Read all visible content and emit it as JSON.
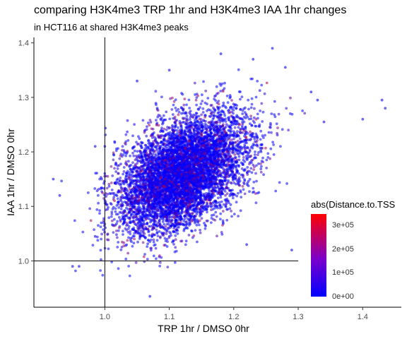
{
  "title": "comparing H3K4me3 TRP 1hr and H3K4me3 IAA 1hr changes",
  "subtitle": "in HCT116 at shared H3K4me3 peaks",
  "colors": {
    "point_low": "#0000ff",
    "point_high": "#ff0000",
    "reference_line": "#000000"
  },
  "chart_data": {
    "type": "scatter",
    "title": "comparing H3K4me3 TRP 1hr and H3K4me3 IAA 1hr changes",
    "subtitle": "in HCT116 at shared H3K4me3 peaks",
    "xlabel": "TRP 1hr / DMSO 0hr",
    "ylabel": "IAA 1hr / DMSO 0hr",
    "xlim": [
      0.89,
      1.46
    ],
    "ylim": [
      0.915,
      1.41
    ],
    "xticks": [
      1.0,
      1.1,
      1.2,
      1.3,
      1.4
    ],
    "xtick_labels": [
      "1.0",
      "1.1",
      "1.2",
      "1.3",
      "1.4"
    ],
    "yticks": [
      1.0,
      1.1,
      1.2,
      1.3,
      1.4
    ],
    "ytick_labels": [
      "1.0",
      "1.1",
      "1.2",
      "1.3",
      "1.4"
    ],
    "grid": false,
    "reference_lines": {
      "x": 1.0,
      "y": 1.0
    },
    "color_scale": {
      "variable": "abs(Distance.to.TSS",
      "min": 0,
      "max": 340000,
      "ticks": [
        0,
        100000,
        200000,
        300000
      ],
      "tick_labels": [
        "0e+00",
        "1e+05",
        "2e+05",
        "3e+05"
      ],
      "low_color": "#0000ff",
      "high_color": "#ff0000"
    },
    "legend": "right",
    "point_cloud": {
      "count": 7000,
      "center": [
        1.12,
        1.16
      ],
      "sd": [
        0.05,
        0.055
      ],
      "correlation": 0.45
    },
    "points": [
      {
        "x": 0.92,
        "y": 1.15
      },
      {
        "x": 0.93,
        "y": 1.12
      },
      {
        "x": 0.95,
        "y": 0.99
      },
      {
        "x": 0.96,
        "y": 0.99
      },
      {
        "x": 0.985,
        "y": 1.21
      },
      {
        "x": 0.985,
        "y": 1.045
      },
      {
        "x": 1.0,
        "y": 1.21
      },
      {
        "x": 1.05,
        "y": 1.33
      },
      {
        "x": 1.07,
        "y": 0.935
      },
      {
        "x": 1.1,
        "y": 1.35
      },
      {
        "x": 1.18,
        "y": 1.38
      },
      {
        "x": 1.23,
        "y": 1.37
      },
      {
        "x": 1.26,
        "y": 1.39
      },
      {
        "x": 1.28,
        "y": 1.355
      },
      {
        "x": 1.32,
        "y": 1.31
      },
      {
        "x": 1.33,
        "y": 1.295
      },
      {
        "x": 1.33,
        "y": 1.08
      },
      {
        "x": 1.34,
        "y": 1.255
      },
      {
        "x": 1.4,
        "y": 1.26
      },
      {
        "x": 1.43,
        "y": 1.295
      },
      {
        "x": 1.435,
        "y": 1.28
      },
      {
        "x": 1.29,
        "y": 1.02
      },
      {
        "x": 1.22,
        "y": 1.03
      }
    ]
  }
}
